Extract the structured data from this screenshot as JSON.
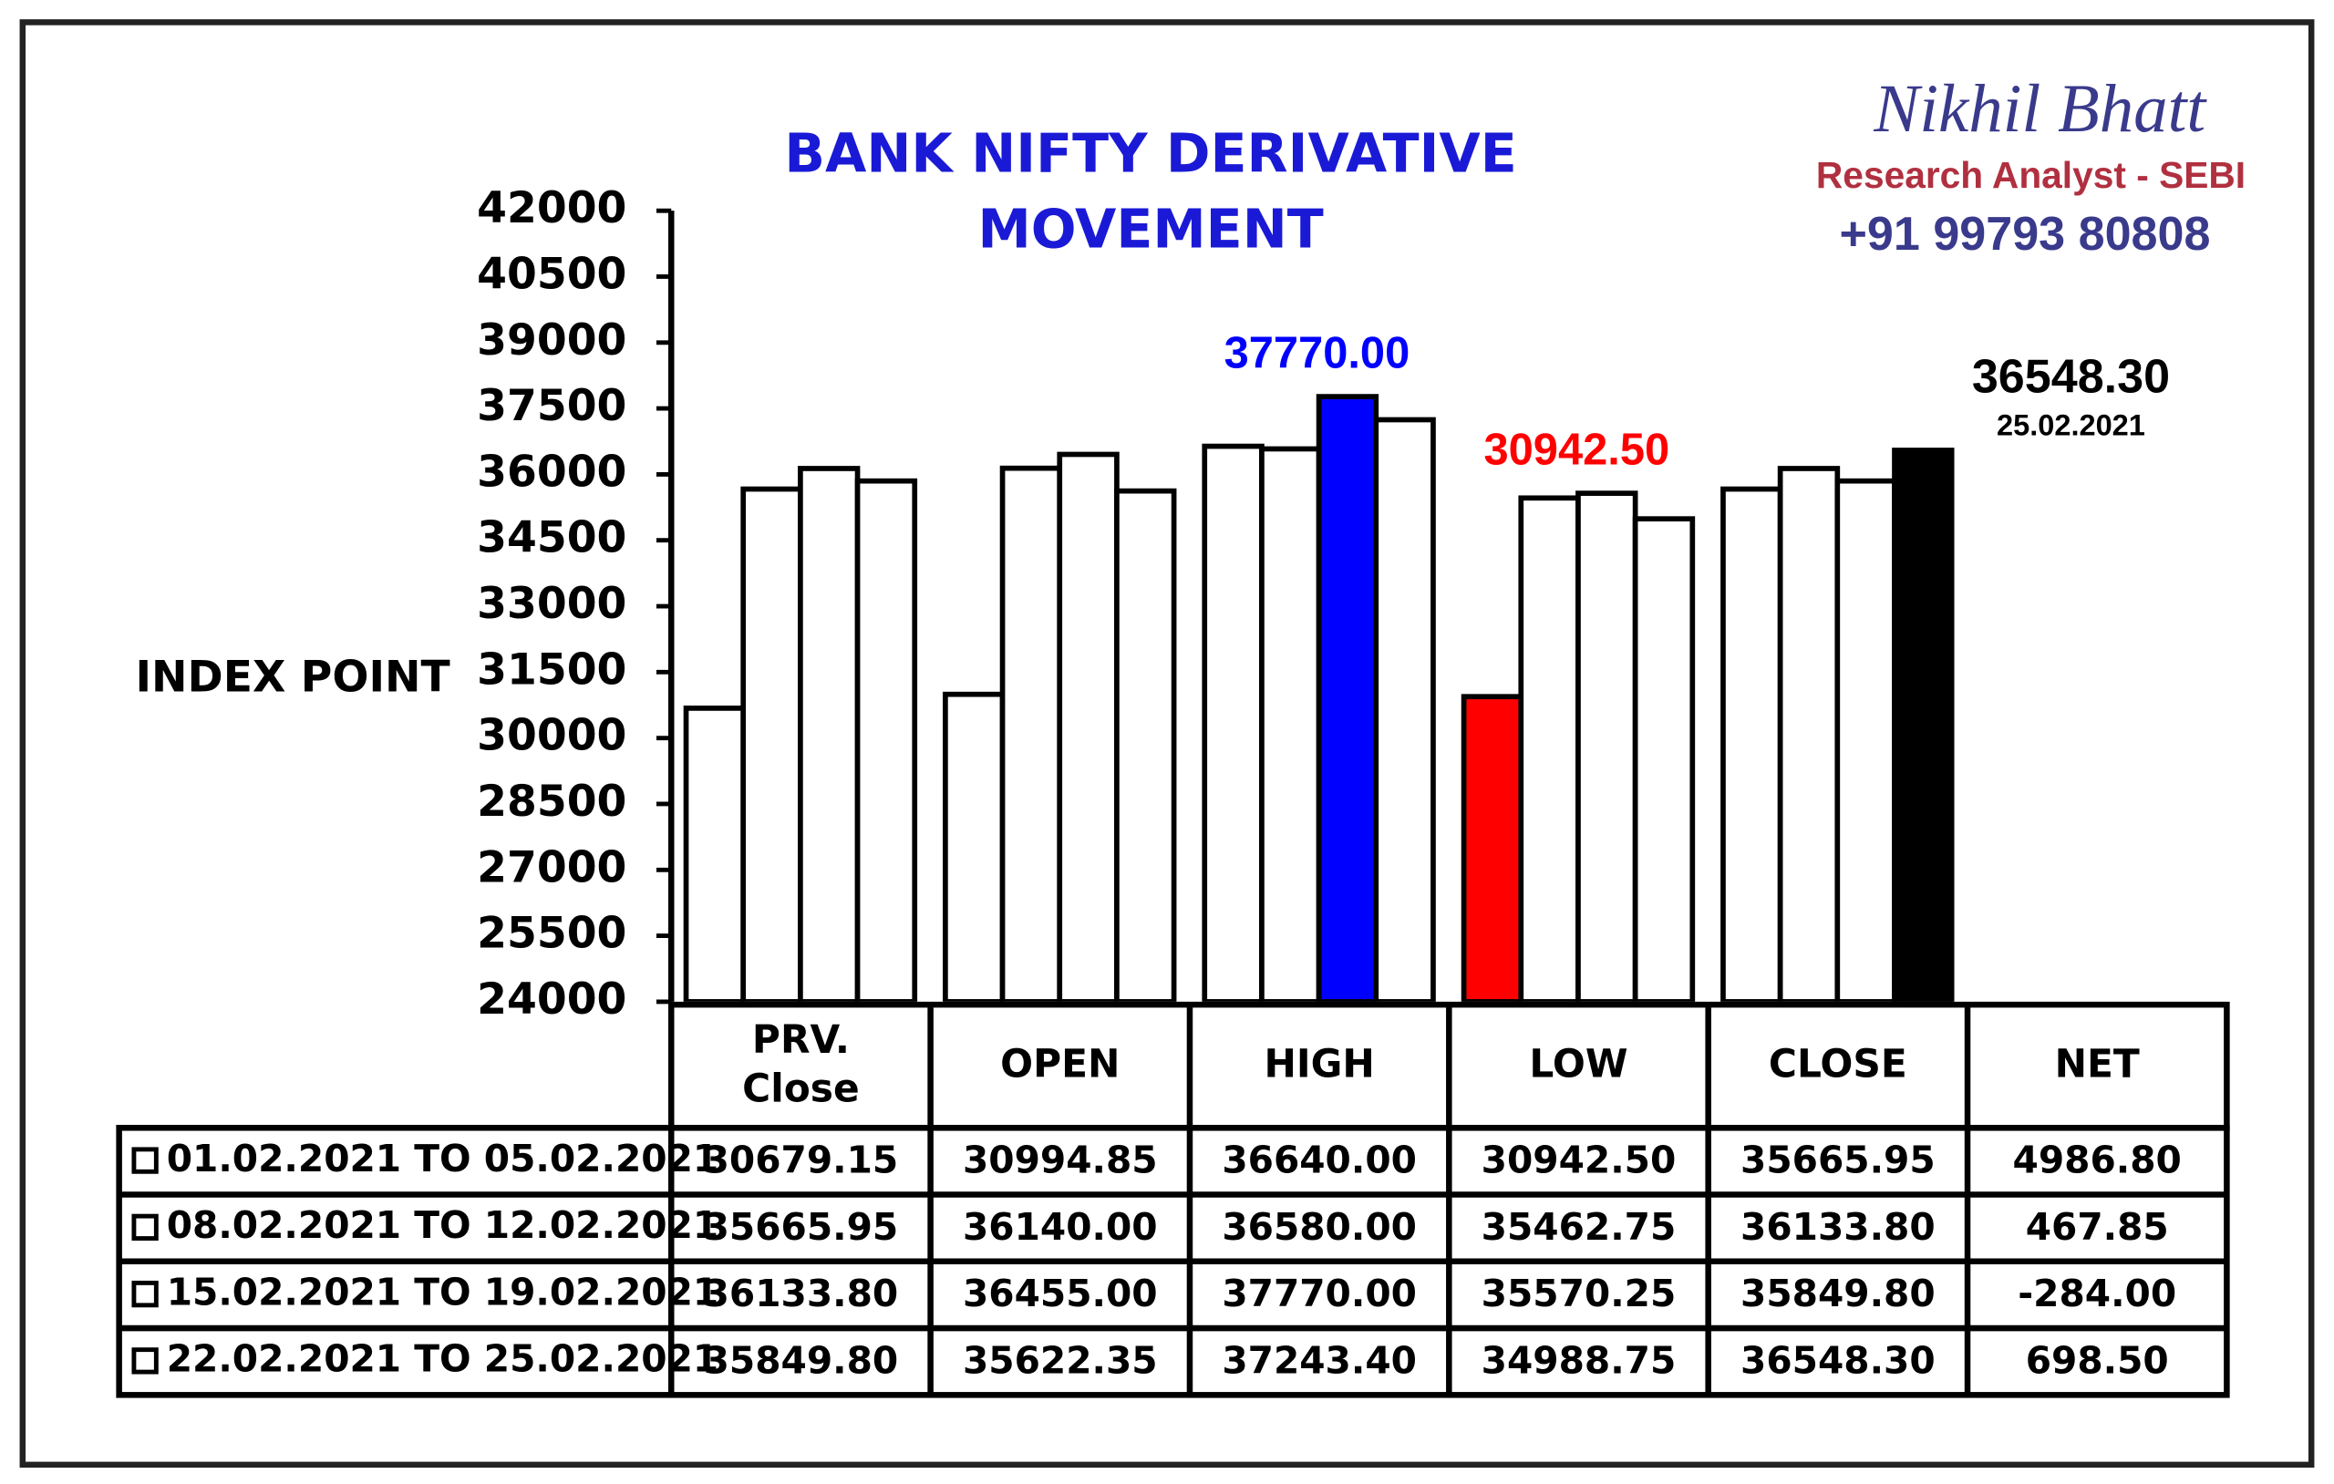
{
  "chart_data": {
    "type": "bar",
    "title": [
      "BANK NIFTY DERIVATIVE",
      "MOVEMENT"
    ],
    "brand": {
      "name": "Nikhil Bhatt",
      "role": "Research Analyst - SEBI",
      "phone": "+91 99793 80808"
    },
    "ylabel": "INDEX POINT",
    "categories": [
      "PRV.\nClose",
      "OPEN",
      "HIGH",
      "LOW",
      "CLOSE",
      "NET"
    ],
    "ylim": [
      24000,
      42000
    ],
    "yticks": [
      24000,
      25500,
      27000,
      28500,
      30000,
      31500,
      33000,
      34500,
      36000,
      37500,
      39000,
      40500,
      42000
    ],
    "series": [
      {
        "name": "01.02.2021 TO 05.02.2021",
        "colors": [
          "#ffffff",
          "#ffffff",
          "#ffffff",
          "#ff0000",
          "#ffffff",
          "#ffffff"
        ],
        "values": [
          30679.15,
          30994.85,
          36640,
          30942.5,
          35665.95,
          4986.8
        ],
        "value_labels": [
          "30679.15",
          "30994.85",
          "36640.00",
          "30942.50",
          "35665.95",
          "4986.80"
        ]
      },
      {
        "name": "08.02.2021 TO 12.02.2021",
        "colors": [
          "#ffffff",
          "#ffffff",
          "#ffffff",
          "#ffffff",
          "#ffffff",
          "#ffffff"
        ],
        "values": [
          35665.95,
          36140,
          36580,
          35462.75,
          36133.8,
          467.85
        ],
        "value_labels": [
          "35665.95",
          "36140.00",
          "36580.00",
          "35462.75",
          "36133.80",
          "467.85"
        ]
      },
      {
        "name": "15.02.2021 TO 19.02.2021",
        "colors": [
          "#ffffff",
          "#ffffff",
          "#0000ff",
          "#ffffff",
          "#ffffff",
          "#ffffff"
        ],
        "values": [
          36133.8,
          36455,
          37770,
          35570.25,
          35849.8,
          -284
        ],
        "value_labels": [
          "36133.80",
          "36455.00",
          "37770.00",
          "35570.25",
          "35849.80",
          "-284.00"
        ]
      },
      {
        "name": "22.02.2021 TO 25.02.2021",
        "colors": [
          "#ffffff",
          "#ffffff",
          "#ffffff",
          "#ffffff",
          "#000000",
          "#ffffff"
        ],
        "values": [
          35849.8,
          35622.35,
          37243.4,
          34988.75,
          36548.3,
          698.5
        ],
        "value_labels": [
          "35849.80",
          "35622.35",
          "37243.40",
          "34988.75",
          "36548.30",
          "698.50"
        ]
      }
    ],
    "annotations": [
      {
        "text": "37770.00",
        "color": "#0000ff"
      },
      {
        "text": "30942.50",
        "color": "#ff0000"
      },
      {
        "text": "36548.30",
        "color": "#000000"
      },
      {
        "text": "25.02.2021",
        "color": "#000000"
      }
    ]
  }
}
